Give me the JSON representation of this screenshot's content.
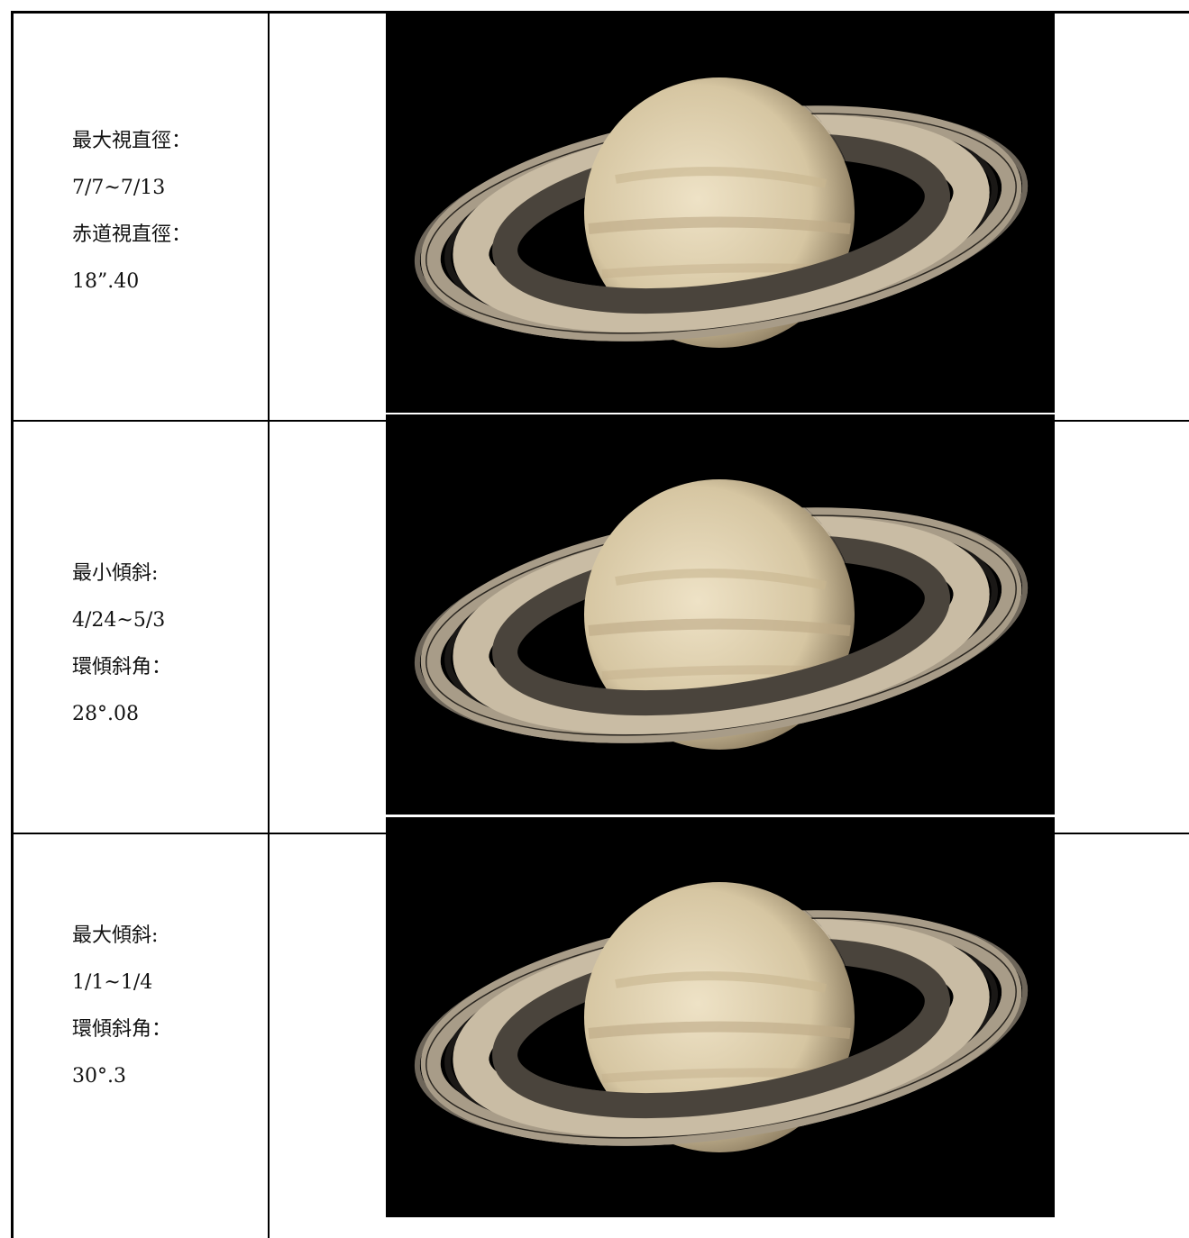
{
  "rows": [
    {
      "lines": [
        "最大視直徑：",
        "7/7~7/13",
        "赤道視直徑：",
        "18”.40"
      ]
    },
    {
      "lines": [
        "最小傾斜:",
        "4/24~5/3",
        "環傾斜角：",
        "28°.08"
      ]
    },
    {
      "lines": [
        "最大傾斜:",
        "1/1~1/4",
        "環傾斜角：",
        "30°.3"
      ]
    }
  ]
}
